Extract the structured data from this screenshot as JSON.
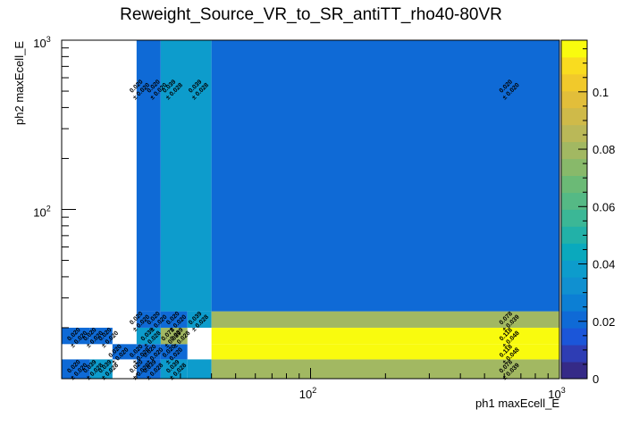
{
  "chart_data": {
    "type": "heatmap",
    "title": "Reweight_Source_VR_to_SR_antiTT_rho40-80VR",
    "xlabel": "ph1 maxEcell_E",
    "ylabel": "ph2 maxEcell_E",
    "x_scale": "log",
    "y_scale": "log",
    "xlim": [
      10,
      1000
    ],
    "ylim": [
      10,
      1000
    ],
    "x_major_ticks": [
      {
        "value": 100,
        "base": "10",
        "exp": "2"
      },
      {
        "value": 1000,
        "base": "10",
        "exp": "3"
      }
    ],
    "y_major_ticks": [
      {
        "value": 100,
        "base": "10",
        "exp": "2"
      },
      {
        "value": 1000,
        "base": "10",
        "exp": "3"
      }
    ],
    "z_range": [
      0,
      0.118
    ],
    "z_ticks": [
      "0",
      "0.02",
      "0.04",
      "0.06",
      "0.08",
      "0.1"
    ],
    "z_tick_values": [
      0,
      0.02,
      0.04,
      0.06,
      0.08,
      0.1
    ],
    "palette": [
      "#352a87",
      "#2e3db4",
      "#1b56d9",
      "#0f6ad6",
      "#0c7fd4",
      "#1090d0",
      "#0d9ccc",
      "#0aa9bd",
      "#22b1a8",
      "#3bb796",
      "#55b985",
      "#6bba76",
      "#88b96a",
      "#a2b862",
      "#bab858",
      "#cfba49",
      "#e2be3a",
      "#f1c92b",
      "#f9dc1f",
      "#f9fb0e"
    ],
    "grid": false,
    "cells": [
      {
        "x0": 10,
        "x1": 13,
        "y0": 10,
        "y1": 13,
        "value": 0.02,
        "label": "0.020",
        "err": "± 0.020"
      },
      {
        "x0": 13,
        "x1": 16,
        "y0": 10,
        "y1": 13,
        "value": 0.039,
        "label": "0.039",
        "err": "± 0.028"
      },
      {
        "x0": 10,
        "x1": 13,
        "y0": 16,
        "y1": 20,
        "value": 0.02,
        "label": "0.020",
        "err": "± 0.020"
      },
      {
        "x0": 13,
        "x1": 16,
        "y0": 16,
        "y1": 20,
        "value": 0.02,
        "label": "0.020",
        "err": "± 0.020"
      },
      {
        "x0": 16,
        "x1": 20,
        "y0": 13,
        "y1": 16,
        "value": 0.02,
        "label": "0.020",
        "err": "± 0.020"
      },
      {
        "x0": 20,
        "x1": 25,
        "y0": 10,
        "y1": 13,
        "value": 0.02,
        "label": "0.020",
        "err": "± 0.020"
      },
      {
        "x0": 25,
        "x1": 32,
        "y0": 10,
        "y1": 13,
        "value": 0.039,
        "label": "0.039",
        "err": "± 0.028"
      },
      {
        "x0": 20,
        "x1": 25,
        "y0": 13,
        "y1": 16,
        "value": 0.02,
        "label": "0.020",
        "err": "± 0.020"
      },
      {
        "x0": 25,
        "x1": 32,
        "y0": 13,
        "y1": 16,
        "value": 0.02,
        "label": "0.020",
        "err": "± 0.020"
      },
      {
        "x0": 32,
        "x1": 40,
        "y0": 10,
        "y1": 13,
        "value": 0.039,
        "label": "0.039",
        "err": "± 0.028"
      },
      {
        "x0": 25,
        "x1": 32,
        "y0": 16,
        "y1": 20,
        "value": 0.078,
        "label": "0.078",
        "err": "± 0.039"
      },
      {
        "x0": 20,
        "x1": 25,
        "y0": 16,
        "y1": 20,
        "value": 0.039,
        "label": "0.039",
        "err": "± 0.028"
      },
      {
        "x0": 25,
        "x1": 32,
        "y0": 20,
        "y1": 25,
        "value": 0.02,
        "label": "0.020",
        "err": "± 0.020"
      },
      {
        "x0": 20,
        "x1": 25,
        "y0": 20,
        "y1": 25,
        "value": 0.02,
        "label": "0.020",
        "err": "± 0.020"
      },
      {
        "x0": 32,
        "x1": 40,
        "y0": 20,
        "y1": 25,
        "value": 0.039,
        "label": "0.039",
        "err": "± 0.028"
      },
      {
        "x0": 40,
        "x1": 1000,
        "y0": 10,
        "y1": 13,
        "value": 0.078,
        "label": "0.078",
        "err": "± 0.039"
      },
      {
        "x0": 40,
        "x1": 1000,
        "y0": 13,
        "y1": 16,
        "value": 0.118,
        "label": "0.118",
        "err": "± 0.048"
      },
      {
        "x0": 40,
        "x1": 1000,
        "y0": 16,
        "y1": 20,
        "value": 0.118,
        "label": "0.118",
        "err": "± 0.048"
      },
      {
        "x0": 40,
        "x1": 1000,
        "y0": 20,
        "y1": 25,
        "value": 0.078,
        "label": "0.078",
        "err": "± 0.039"
      },
      {
        "x0": 20,
        "x1": 25,
        "y0": 25,
        "y1": 1000,
        "value": 0.02,
        "label": "0.020",
        "err": "± 0.020"
      },
      {
        "x0": 25,
        "x1": 40,
        "y0": 25,
        "y1": 1000,
        "value": 0.039,
        "label": "0.039",
        "err": "± 0.028"
      },
      {
        "x0": 40,
        "x1": 1000,
        "y0": 25,
        "y1": 1000,
        "value": 0.02,
        "label": "0.020",
        "err": "± 0.020"
      }
    ],
    "cell_labels": [
      {
        "x": 20.3,
        "y": 520,
        "label": "0.020",
        "err": "± 0.020"
      },
      {
        "x": 23.8,
        "y": 520,
        "label": "0.020",
        "err": "± 0.020"
      },
      {
        "x": 27.5,
        "y": 520,
        "label": "0.039",
        "err": "± 0.028"
      },
      {
        "x": 35.0,
        "y": 520,
        "label": "0.039",
        "err": "± 0.028"
      },
      {
        "x": 620,
        "y": 520,
        "label": "0.020",
        "err": "± 0.020"
      },
      {
        "x": 20.3,
        "y": 22.2,
        "label": "0.020",
        "err": "± 0.020"
      },
      {
        "x": 23.8,
        "y": 22.2,
        "label": "0.020",
        "err": "± 0.020"
      },
      {
        "x": 28.5,
        "y": 22.2,
        "label": "0.020",
        "err": "± 0.020"
      },
      {
        "x": 35.0,
        "y": 22.2,
        "label": "0.039",
        "err": "± 0.028"
      },
      {
        "x": 620,
        "y": 22.2,
        "label": "0.078",
        "err": "± 0.039"
      },
      {
        "x": 11.4,
        "y": 17.8,
        "label": "0.020",
        "err": "± 0.020"
      },
      {
        "x": 13.2,
        "y": 17.8,
        "label": "0.020",
        "err": "± 0.020"
      },
      {
        "x": 15.2,
        "y": 17.8,
        "label": "0.020",
        "err": "± 0.020"
      },
      {
        "x": 22.5,
        "y": 17.8,
        "label": "0.039",
        "err": "± 0.028"
      },
      {
        "x": 27.2,
        "y": 17.8,
        "label": "0.078",
        "err": "± 0.039"
      },
      {
        "x": 29.5,
        "y": 17.8,
        "label": "0.039",
        "err": "± 0.028"
      },
      {
        "x": 620,
        "y": 17.8,
        "label": "0.118",
        "err": "± 0.048"
      },
      {
        "x": 16.7,
        "y": 14.2,
        "label": "0.020",
        "err": "± 0.020"
      },
      {
        "x": 20.3,
        "y": 14.2,
        "label": "0.020",
        "err": "± 0.020"
      },
      {
        "x": 23.0,
        "y": 14.2,
        "label": "0.020",
        "err": "± 0.020"
      },
      {
        "x": 27.5,
        "y": 14.2,
        "label": "0.020",
        "err": "± 0.020"
      },
      {
        "x": 620,
        "y": 14.2,
        "label": "0.118",
        "err": "± 0.048"
      },
      {
        "x": 11.4,
        "y": 11.5,
        "label": "0.020",
        "err": "± 0.020"
      },
      {
        "x": 13.2,
        "y": 11.5,
        "label": "0.039",
        "err": "± 0.028"
      },
      {
        "x": 15.2,
        "y": 11.5,
        "label": "0.039",
        "err": "± 0.028"
      },
      {
        "x": 20.3,
        "y": 11.5,
        "label": "0.020",
        "err": "± 0.020"
      },
      {
        "x": 23.0,
        "y": 11.5,
        "label": "0.039",
        "err": "± 0.028"
      },
      {
        "x": 28.5,
        "y": 11.5,
        "label": "0.039",
        "err": "± 0.028"
      },
      {
        "x": 620,
        "y": 11.5,
        "label": "0.078",
        "err": "± 0.039"
      }
    ]
  }
}
